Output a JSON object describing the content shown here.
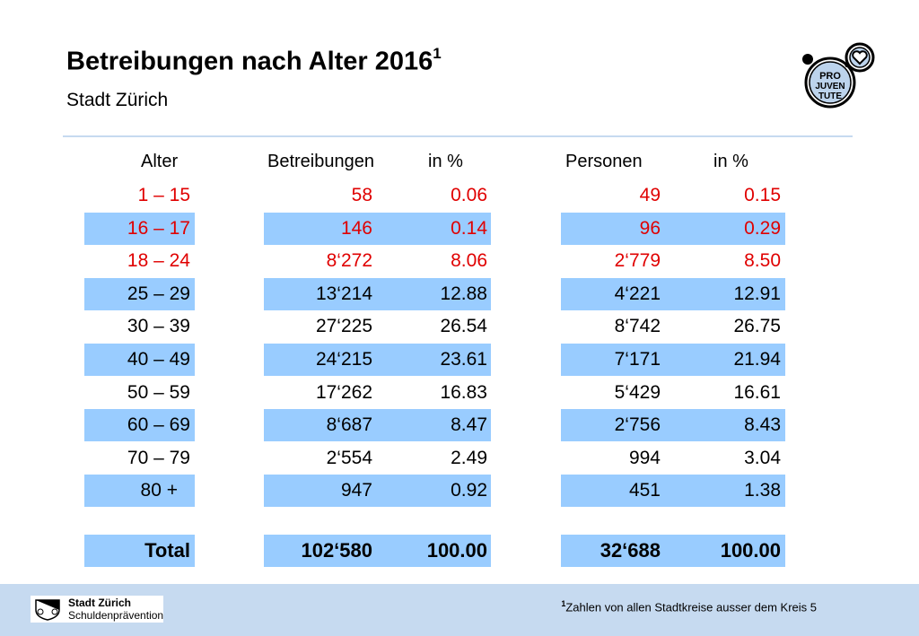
{
  "header": {
    "title": "Betreibungen nach Alter 2016",
    "title_sup": "1",
    "subtitle": "Stadt Zürich"
  },
  "logo": {
    "lines": [
      "PRO",
      "JUVEN",
      "TUTE"
    ]
  },
  "columns": {
    "alter": "Alter",
    "betreibungen": "Betreibungen",
    "betr_pct": "in %",
    "personen": "Personen",
    "pers_pct": "in %"
  },
  "rows": [
    {
      "age": "1 – 15",
      "betr": "58",
      "betr_pct": "0.06",
      "pers": "49",
      "pers_pct": "0.15"
    },
    {
      "age": "16 – 17",
      "betr": "146",
      "betr_pct": "0.14",
      "pers": "96",
      "pers_pct": "0.29"
    },
    {
      "age": "18 – 24",
      "betr": "8‘272",
      "betr_pct": "8.06",
      "pers": "2‘779",
      "pers_pct": "8.50"
    },
    {
      "age": "25 – 29",
      "betr": "13‘214",
      "betr_pct": "12.88",
      "pers": "4‘221",
      "pers_pct": "12.91"
    },
    {
      "age": "30 – 39",
      "betr": "27‘225",
      "betr_pct": "26.54",
      "pers": "8‘742",
      "pers_pct": "26.75"
    },
    {
      "age": "40 – 49",
      "betr": "24‘215",
      "betr_pct": "23.61",
      "pers": "7‘171",
      "pers_pct": "21.94"
    },
    {
      "age": "50 – 59",
      "betr": "17‘262",
      "betr_pct": "16.83",
      "pers": "5‘429",
      "pers_pct": "16.61"
    },
    {
      "age": "60 – 69",
      "betr": "8‘687",
      "betr_pct": "8.47",
      "pers": "2‘756",
      "pers_pct": "8.43"
    },
    {
      "age": "70 – 79",
      "betr": "2‘554",
      "betr_pct": "2.49",
      "pers": "994",
      "pers_pct": "3.04"
    },
    {
      "age": "80 +",
      "betr": "947",
      "betr_pct": "0.92",
      "pers": "451",
      "pers_pct": "1.38"
    }
  ],
  "total": {
    "age": "Total",
    "betr": "102‘580",
    "betr_pct": "100.00",
    "pers": "32‘688",
    "pers_pct": "100.00"
  },
  "colors": {
    "band": "#99ccff",
    "highlight_text": "#e00000",
    "footer_bg": "#c6daf0"
  },
  "footer": {
    "logo_line1": "Stadt Zürich",
    "logo_line2": "Schuldenprävention",
    "footnote_sup": "1",
    "footnote": "Zahlen von allen Stadtkreise ausser dem Kreis 5"
  }
}
